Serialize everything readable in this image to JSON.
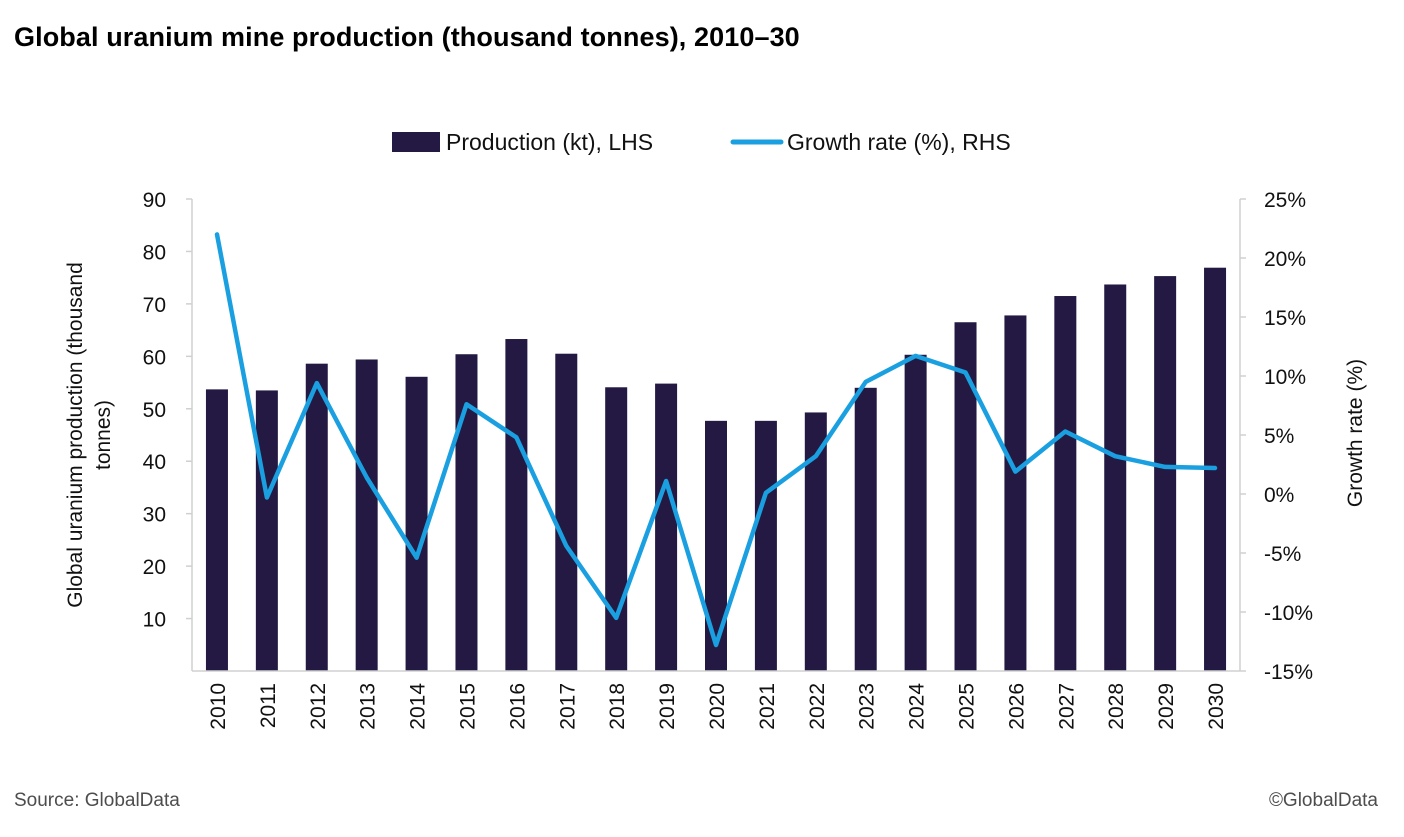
{
  "title": "Global uranium mine production (thousand tonnes), 2010–30",
  "source": "Source: GlobalData",
  "copyright": "©GlobalData",
  "chart_data": {
    "type": "bar",
    "categories": [
      "2010",
      "2011",
      "2012",
      "2013",
      "2014",
      "2015",
      "2016",
      "2017",
      "2018",
      "2019",
      "2020",
      "2021",
      "2022",
      "2023",
      "2024",
      "2025",
      "2026",
      "2027",
      "2028",
      "2029",
      "2030"
    ],
    "series": [
      {
        "name": "Production (kt), LHS",
        "type": "bar",
        "axis": "left",
        "color": "#231942",
        "values": [
          53.7,
          53.5,
          58.6,
          59.4,
          56.1,
          60.4,
          63.3,
          60.5,
          54.1,
          54.8,
          47.7,
          47.7,
          49.3,
          54.0,
          60.3,
          66.5,
          67.8,
          71.5,
          73.7,
          75.3,
          76.9
        ]
      },
      {
        "name": "Growth rate (%), RHS",
        "type": "line",
        "axis": "right",
        "color": "#1aa0e0",
        "values": [
          22.0,
          -0.3,
          9.4,
          1.4,
          -5.4,
          7.6,
          4.8,
          -4.4,
          -10.5,
          1.1,
          -12.8,
          0.1,
          3.2,
          9.5,
          11.7,
          10.3,
          1.9,
          5.3,
          3.2,
          2.3,
          2.2
        ]
      }
    ],
    "left_axis": {
      "label": "Global uranium production (thousand tonnes)",
      "label_lines": [
        "Global uranium production (thousand",
        "tonnes)"
      ],
      "ylim": [
        0,
        90
      ],
      "ticks": [
        10,
        20,
        30,
        40,
        50,
        60,
        70,
        80,
        90
      ],
      "tick_labels": [
        "10",
        "20",
        "30",
        "40",
        "50",
        "60",
        "70",
        "80",
        "90"
      ]
    },
    "right_axis": {
      "label": "Growth rate (%)",
      "ylim": [
        -15,
        25
      ],
      "ticks": [
        -15,
        -10,
        -5,
        0,
        5,
        10,
        15,
        20,
        25
      ],
      "tick_labels": [
        "-15%",
        "-10%",
        "-5%",
        "0%",
        "5%",
        "10%",
        "15%",
        "20%",
        "25%"
      ]
    },
    "legend_position": "top-center",
    "grid": false
  }
}
